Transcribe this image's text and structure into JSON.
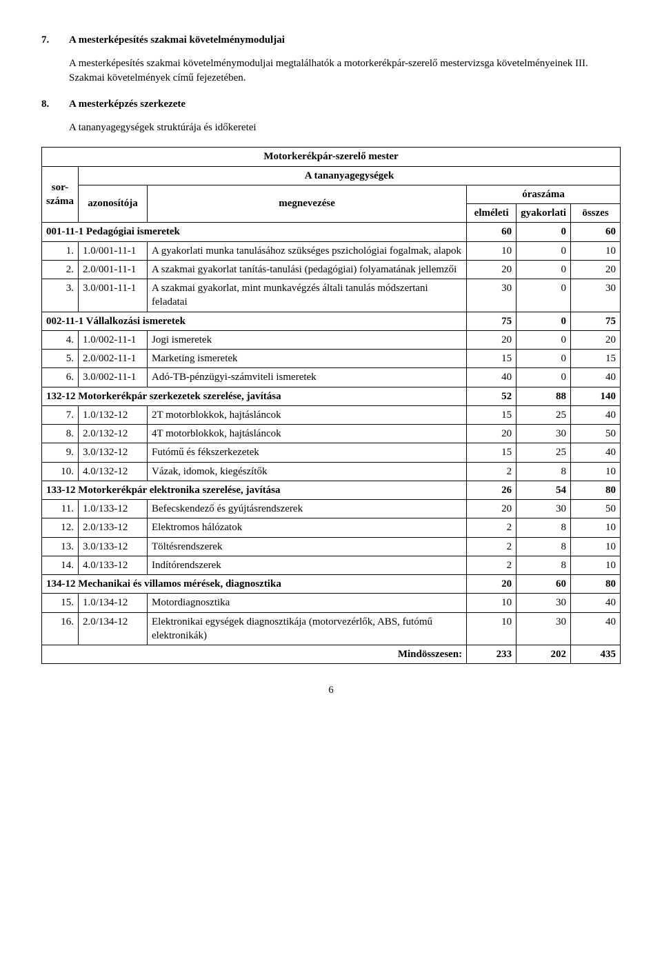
{
  "section7": {
    "num": "7.",
    "title": "A mesterképesítés szakmai követelménymoduljai",
    "para": "A mesterképesítés szakmai követelménymoduljai megtalálhatók a motorkerékpár-szerelő mestervizsga követelményeinek III. Szakmai követelmények című fejezetében."
  },
  "section8": {
    "num": "8.",
    "title": "A mesterképzés szerkezete",
    "sub": "A tananyagegységek struktúrája és időkeretei"
  },
  "table": {
    "topTitle": "Motorkerékpár-szerelő mester",
    "unitLabel": "A tananyagegységek",
    "sorszama": "sor-\nszáma",
    "azon": "azonosítója",
    "megnev": "megnevezése",
    "oraszama": "óraszáma",
    "elmeleti": "elméleti",
    "gyakorlati": "gyakorlati",
    "osszes": "összes",
    "rows": [
      {
        "cat": true,
        "code": "001-11-1",
        "name": "Pedagógiai ismeretek",
        "e": "60",
        "g": "0",
        "o": "60"
      },
      {
        "n": "1.",
        "code": "1.0/001-11-1",
        "name": "A gyakorlati munka tanulásához szükséges pszichológiai fogalmak, alapok",
        "e": "10",
        "g": "0",
        "o": "10"
      },
      {
        "n": "2.",
        "code": "2.0/001-11-1",
        "name": "A szakmai gyakorlat tanítás-tanulási (pedagógiai) folyamatának jellemzői",
        "e": "20",
        "g": "0",
        "o": "20"
      },
      {
        "n": "3.",
        "code": "3.0/001-11-1",
        "name": "A szakmai gyakorlat, mint munkavégzés általi tanulás módszertani feladatai",
        "e": "30",
        "g": "0",
        "o": "30"
      },
      {
        "cat": true,
        "code": "002-11-1",
        "name": "Vállalkozási ismeretek",
        "e": "75",
        "g": "0",
        "o": "75"
      },
      {
        "n": "4.",
        "code": "1.0/002-11-1",
        "name": "Jogi ismeretek",
        "e": "20",
        "g": "0",
        "o": "20"
      },
      {
        "n": "5.",
        "code": "2.0/002-11-1",
        "name": "Marketing ismeretek",
        "e": "15",
        "g": "0",
        "o": "15"
      },
      {
        "n": "6.",
        "code": "3.0/002-11-1",
        "name": "Adó-TB-pénzügyi-számviteli ismeretek",
        "e": "40",
        "g": "0",
        "o": "40"
      },
      {
        "cat": true,
        "code": "132-12",
        "name": "Motorkerékpár szerkezetek szerelése, javítása",
        "e": "52",
        "g": "88",
        "o": "140"
      },
      {
        "n": "7.",
        "code": "1.0/132-12",
        "name": "2T motorblokkok, hajtásláncok",
        "e": "15",
        "g": "25",
        "o": "40"
      },
      {
        "n": "8.",
        "code": "2.0/132-12",
        "name": "4T motorblokkok, hajtásláncok",
        "e": "20",
        "g": "30",
        "o": "50"
      },
      {
        "n": "9.",
        "code": "3.0/132-12",
        "name": "Futómű és fékszerkezetek",
        "e": "15",
        "g": "25",
        "o": "40"
      },
      {
        "n": "10.",
        "code": "4.0/132-12",
        "name": "Vázak, idomok, kiegészítők",
        "e": "2",
        "g": "8",
        "o": "10"
      },
      {
        "cat": true,
        "code": "133-12",
        "name": "Motorkerékpár elektronika szerelése, javítása",
        "e": "26",
        "g": "54",
        "o": "80"
      },
      {
        "n": "11.",
        "code": "1.0/133-12",
        "name": "Befecskendező és gyújtásrendszerek",
        "e": "20",
        "g": "30",
        "o": "50"
      },
      {
        "n": "12.",
        "code": "2.0/133-12",
        "name": "Elektromos hálózatok",
        "e": "2",
        "g": "8",
        "o": "10"
      },
      {
        "n": "13.",
        "code": "3.0/133-12",
        "name": "Töltésrendszerek",
        "e": "2",
        "g": "8",
        "o": "10"
      },
      {
        "n": "14.",
        "code": "4.0/133-12",
        "name": "Indítórendszerek",
        "e": "2",
        "g": "8",
        "o": "10"
      },
      {
        "cat": true,
        "code": "134-12",
        "name": "Mechanikai és villamos mérések, diagnosztika",
        "e": "20",
        "g": "60",
        "o": "80"
      },
      {
        "n": "15.",
        "code": "1.0/134-12",
        "name": "Motordiagnosztika",
        "e": "10",
        "g": "30",
        "o": "40"
      },
      {
        "n": "16.",
        "code": "2.0/134-12",
        "name": "Elektronikai egységek diagnosztikája (motorvezérlők, ABS, futómű elektronikák)",
        "e": "10",
        "g": "30",
        "o": "40"
      }
    ],
    "totalLabel": "Mindösszesen:",
    "totalE": "233",
    "totalG": "202",
    "totalO": "435"
  },
  "pageNum": "6"
}
